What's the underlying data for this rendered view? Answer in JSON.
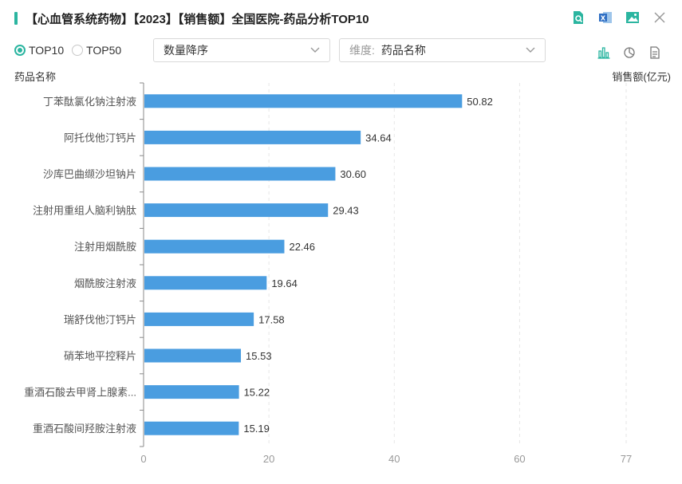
{
  "header": {
    "title": "【心血管系统药物】【2023】【销售额】全国医院-药品分析TOP10",
    "accent_color": "#2bb5a0",
    "tools": [
      "search-doc-icon",
      "excel-export-icon",
      "image-export-icon",
      "close-icon"
    ]
  },
  "controls": {
    "radios": [
      {
        "label": "TOP10",
        "selected": true
      },
      {
        "label": "TOP50",
        "selected": false
      }
    ],
    "sort_select": {
      "value": "数量降序"
    },
    "dimension_select": {
      "prefix": "维度:",
      "value": "药品名称"
    },
    "view_tools": [
      "bar-chart-icon",
      "pie-chart-icon",
      "table-doc-icon"
    ]
  },
  "chart_data": {
    "type": "bar",
    "orientation": "horizontal",
    "ylabel": "药品名称",
    "xlabel": "销售额(亿元)",
    "categories": [
      "丁苯酞氯化钠注射液",
      "阿托伐他汀钙片",
      "沙库巴曲缬沙坦钠片",
      "注射用重组人脑利钠肽",
      "注射用烟酰胺",
      "烟酰胺注射液",
      "瑞舒伐他汀钙片",
      "硝苯地平控释片",
      "重酒石酸去甲肾上腺素...",
      "重酒石酸间羟胺注射液"
    ],
    "values": [
      50.82,
      34.64,
      30.6,
      29.43,
      22.46,
      19.64,
      17.58,
      15.53,
      15.22,
      15.19
    ],
    "value_labels": [
      "50.82",
      "34.64",
      "30.60",
      "29.43",
      "22.46",
      "19.64",
      "17.58",
      "15.53",
      "15.22",
      "15.19"
    ],
    "xlim": [
      0,
      77
    ],
    "xticks": [
      0,
      20,
      40,
      60,
      77
    ],
    "grid": "vertical-dashed",
    "bar_color": "#4a9de0"
  }
}
